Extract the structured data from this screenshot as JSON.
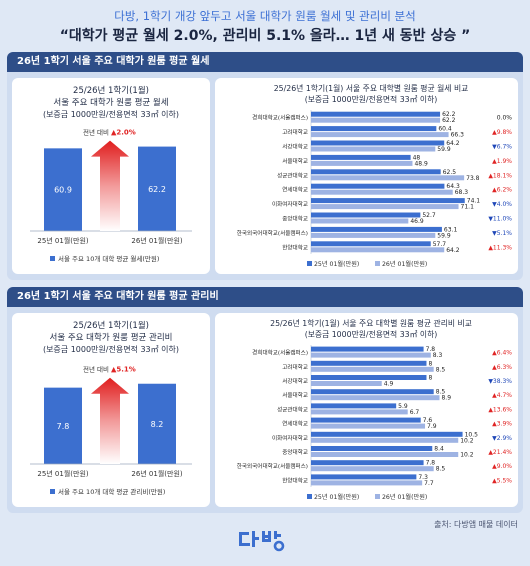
{
  "header": {
    "subtitle": "다방, 1학기 개강 앞두고 서울 대학가 원룸 월세 및 관리비 분석",
    "title": "“대학가 평균 월세 2.0%, 관리비 5.1% 올라… 1년 새 동반 상승 ”"
  },
  "footer": {
    "source": "출처: 다방앱 매물 데이터"
  },
  "colors": {
    "bar_2025": "#3c6fcf",
    "bar_2026": "#9eb3e3",
    "up": "#e02424",
    "down": "#1f47b8",
    "header_bar": "#2e4e88"
  },
  "chart_data": [
    {
      "type": "bar",
      "section_title": "26년 1학기 서울 주요 대학가 원룸 평균 월세",
      "title": "25/26년 1학기(1월)",
      "title2": "서울 주요 대학가 원룸 평균 월세",
      "title3": "(보증금 1000만원/전용면적 33㎡ 이하)",
      "categories": [
        "25년 01월(만원)",
        "26년 01월(만원)"
      ],
      "values": [
        60.9,
        62.2
      ],
      "change_prefix": "전년 대비",
      "change_label": "▲2.0%",
      "legend": "서울 주요 10개 대학 평균 월세(만원)",
      "ylim": [
        0,
        70
      ]
    },
    {
      "type": "bar",
      "title": "25/26년 1학기(1월) 서울 주요 대학별 원룸 평균 월세 비교",
      "title2": "(보증금 1000만원/전용면적 33㎡ 이하)",
      "categories": [
        "경희대학교(서울캠퍼스)",
        "고려대학교",
        "서강대학교",
        "서울대학교",
        "성균관대학교",
        "연세대학교",
        "이화여자대학교",
        "중앙대학교",
        "한국외국어대학교(서울캠퍼스)",
        "한양대학교"
      ],
      "series": [
        {
          "name": "25년 01월(만원)",
          "values": [
            62.2,
            60.4,
            64.2,
            48.0,
            62.5,
            64.3,
            74.1,
            52.7,
            63.1,
            57.7
          ]
        },
        {
          "name": "26년 01월(만원)",
          "values": [
            62.2,
            66.3,
            59.9,
            48.9,
            73.8,
            68.3,
            71.1,
            46.9,
            59.9,
            64.2
          ]
        }
      ],
      "changes": [
        "0.0%",
        "▲9.8%",
        "▼6.7%",
        "▲1.9%",
        "▲18.1%",
        "▲6.2%",
        "▼4.0%",
        "▼11.0%",
        "▼5.1%",
        "▲11.3%"
      ],
      "change_dir": [
        "flat",
        "up",
        "down",
        "up",
        "up",
        "up",
        "down",
        "down",
        "down",
        "up"
      ],
      "xlim": [
        0,
        80
      ]
    },
    {
      "type": "bar",
      "section_title": "26년 1학기 서울 주요 대학가 원룸 평균 관리비",
      "title": "25/26년 1학기(1월)",
      "title2": "서울 주요 대학가 원룸 평균 관리비",
      "title3": "(보증금 1000만원/전용면적 33㎡ 이하)",
      "categories": [
        "25년 01월(만원)",
        "26년 01월(만원)"
      ],
      "values": [
        7.8,
        8.2
      ],
      "change_prefix": "전년 대비",
      "change_label": "▲5.1%",
      "legend": "서울 주요 10개 대학 평균 관리비(만원)",
      "ylim": [
        0,
        9.5
      ]
    },
    {
      "type": "bar",
      "title": "25/26년 1학기(1월) 서울 주요 대학별 원룸 평균 관리비 비교",
      "title2": "(보증금 1000만원/전용면적 33㎡ 이하)",
      "categories": [
        "경희대학교(서울캠퍼스)",
        "고려대학교",
        "서강대학교",
        "서울대학교",
        "성균관대학교",
        "연세대학교",
        "이화여자대학교",
        "중앙대학교",
        "한국외국어대학교(서울캠퍼스)",
        "한양대학교"
      ],
      "series": [
        {
          "name": "25년 01월(만원)",
          "values": [
            7.8,
            8.0,
            8.0,
            8.5,
            5.9,
            7.6,
            10.5,
            8.4,
            7.8,
            7.3
          ]
        },
        {
          "name": "26년 01월(만원)",
          "values": [
            8.3,
            8.5,
            4.9,
            8.9,
            6.7,
            7.9,
            10.2,
            10.2,
            8.5,
            7.7
          ]
        }
      ],
      "changes": [
        "▲6.4%",
        "▲6.3%",
        "▼38.3%",
        "▲4.7%",
        "▲13.6%",
        "▲3.9%",
        "▼2.9%",
        "▲21.4%",
        "▲9.0%",
        "▲5.5%"
      ],
      "change_dir": [
        "up",
        "up",
        "down",
        "up",
        "up",
        "up",
        "down",
        "up",
        "up",
        "up"
      ],
      "xlim": [
        0,
        11.5
      ]
    }
  ]
}
